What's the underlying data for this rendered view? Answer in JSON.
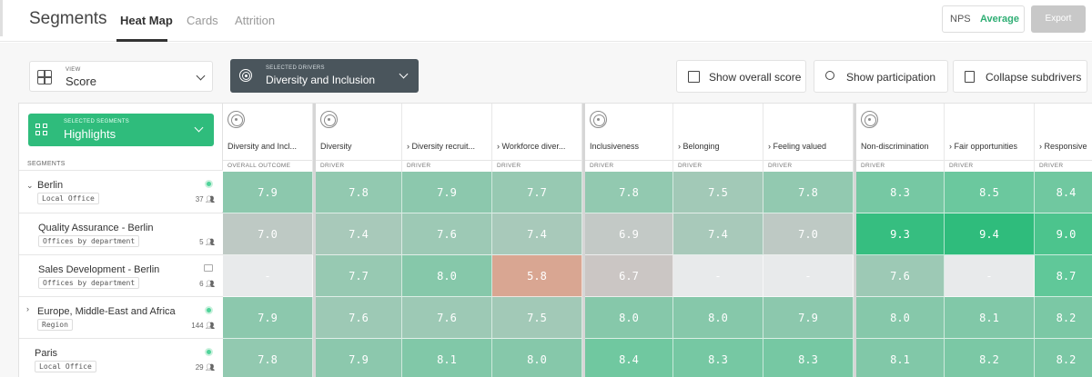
{
  "app": {
    "title": "Segments",
    "tabs": [
      "Heat Map",
      "Cards",
      "Attrition"
    ],
    "active_tab": "Heat Map",
    "mode_options": [
      "NPS",
      "Average"
    ],
    "mode_selected": "Average",
    "export_label": "Export"
  },
  "view": {
    "label": "VIEW",
    "value": "Score"
  },
  "segments_selector": {
    "label": "SELECTED SEGMENTS",
    "value": "Highlights"
  },
  "segments_column_label": "SEGMENTS",
  "drivers_selector": {
    "label": "SELECTED DRIVERS",
    "value": "Diversity and Inclusion"
  },
  "buttons": {
    "overall": "Show overall score",
    "participation": "Show participation",
    "collapse": "Collapse subdrivers"
  },
  "columns": [
    {
      "name": "Diversity and Incl...",
      "type": "OVERALL OUTCOME",
      "icon": "target-icon"
    },
    {
      "name": "Diversity",
      "type": "DRIVER",
      "icon": "target-icon"
    },
    {
      "name": "› Diversity recruit...",
      "type": "DRIVER"
    },
    {
      "name": "› Workforce diver...",
      "type": "DRIVER"
    },
    {
      "name": "Inclusiveness",
      "type": "DRIVER",
      "icon": "target-icon"
    },
    {
      "name": "› Belonging",
      "type": "DRIVER"
    },
    {
      "name": "› Feeling valued",
      "type": "DRIVER"
    },
    {
      "name": "Non-discrimination",
      "type": "DRIVER",
      "icon": "target-icon"
    },
    {
      "name": "› Fair opportunities",
      "type": "DRIVER"
    },
    {
      "name": "› Responsive",
      "type": "DRIVER"
    }
  ],
  "rows": [
    {
      "name": "Berlin",
      "tag": "Local Office",
      "count": "37",
      "expandable": true,
      "status": "dot",
      "values": [
        "7.9",
        "7.8",
        "7.9",
        "7.7",
        "7.8",
        "7.5",
        "7.8",
        "8.3",
        "8.5",
        "8.4"
      ]
    },
    {
      "name": "Quality Assurance - Berlin",
      "tag": "Offices by department",
      "count": "5",
      "expandable": false,
      "status": "",
      "values": [
        "7.0",
        "7.4",
        "7.6",
        "7.4",
        "6.9",
        "7.4",
        "7.0",
        "9.3",
        "9.4",
        "9.0"
      ]
    },
    {
      "name": "Sales Development - Berlin",
      "tag": "Offices by department",
      "count": "6",
      "expandable": false,
      "status": "chat",
      "values": [
        "-",
        "7.7",
        "8.0",
        "5.8",
        "6.7",
        "-",
        "-",
        "7.6",
        "-",
        "8.7"
      ]
    },
    {
      "name": "Europe, Middle-East and Africa",
      "tag": "Region",
      "count": "144",
      "expandable": true,
      "status": "dot",
      "values": [
        "7.9",
        "7.6",
        "7.6",
        "7.5",
        "8.0",
        "8.0",
        "7.9",
        "8.0",
        "8.1",
        "8.2"
      ]
    },
    {
      "name": "Paris",
      "tag": "Local Office",
      "count": "29",
      "expandable": false,
      "status": "dot",
      "values": [
        "7.8",
        "7.9",
        "8.1",
        "8.0",
        "8.4",
        "8.3",
        "8.3",
        "8.1",
        "8.2",
        "8.2"
      ]
    }
  ],
  "colors": {
    "accent": "#2fbc7c",
    "score_high": "#2fbc7c",
    "score_neutral": "#c9c9c9",
    "score_low": "#d9a692",
    "nodata": "#e8eaeb",
    "drivers_bg": "#4a555c"
  }
}
